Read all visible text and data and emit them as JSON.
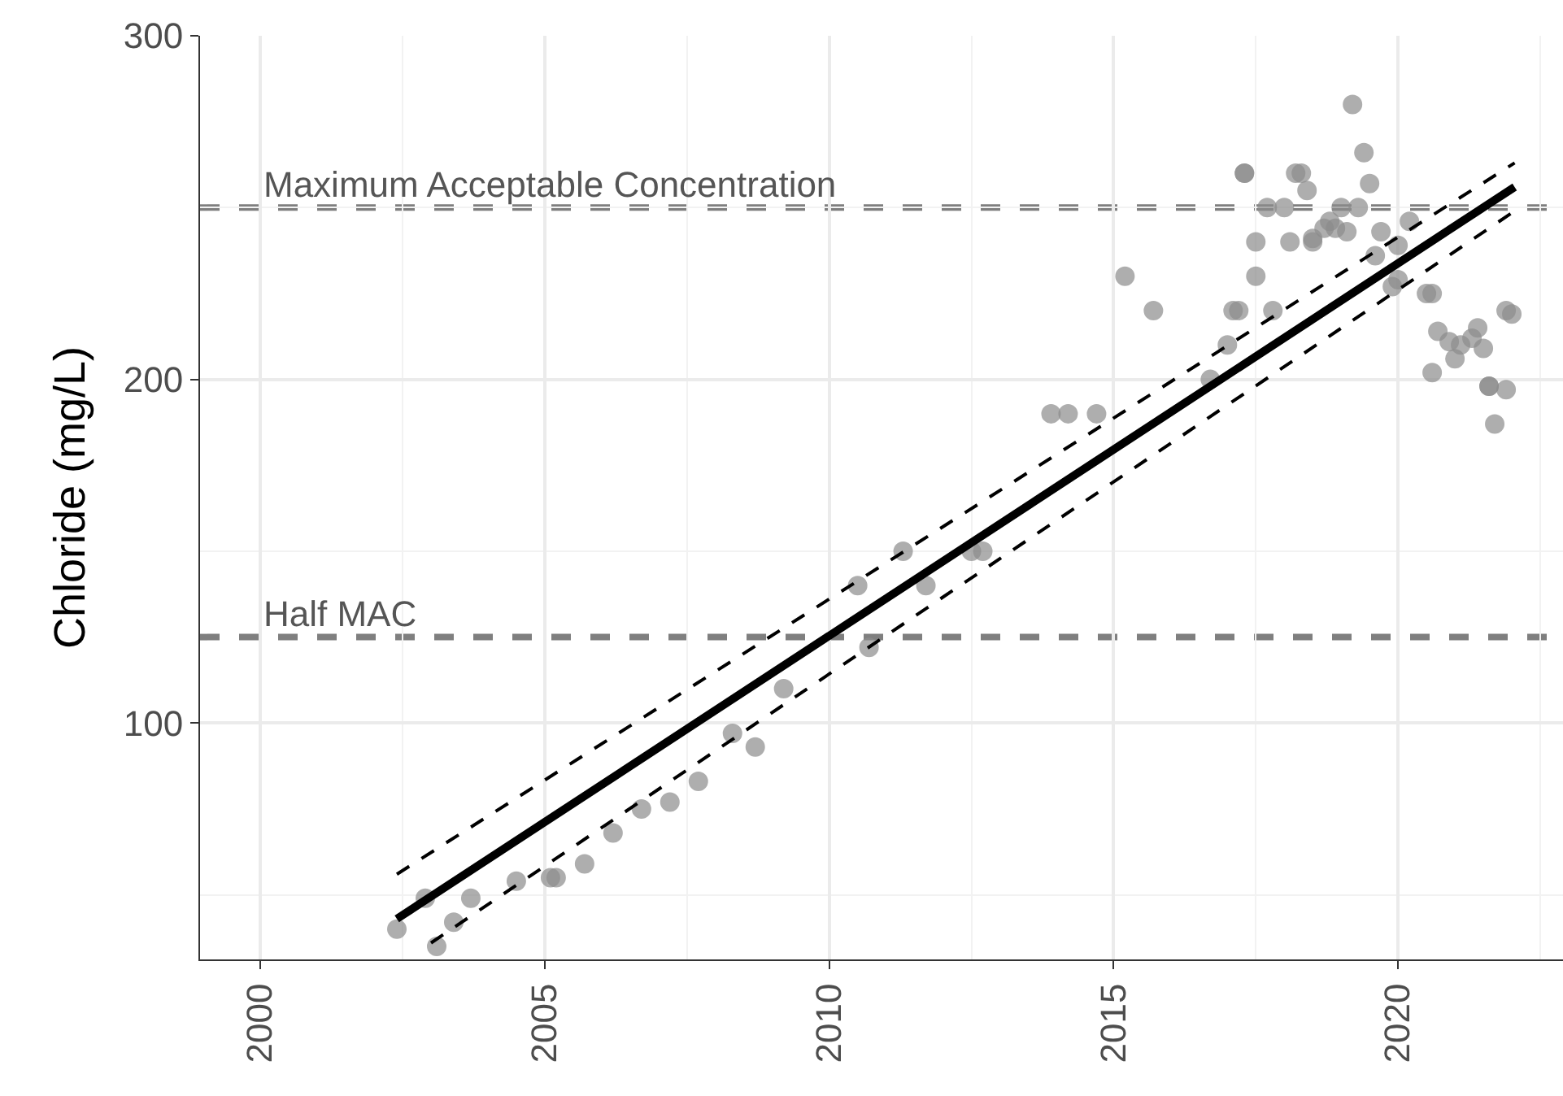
{
  "chart_data": {
    "type": "scatter",
    "ylabel": "Chloride (mg/L)",
    "xlim": [
      1998.94,
      2022.9
    ],
    "xticks": [
      2000,
      2005,
      2010,
      2015,
      2020
    ],
    "ylim": [
      31.2,
      300
    ],
    "yticks": [
      100,
      200,
      300
    ],
    "grid": true,
    "marker": "circle",
    "series": [
      {
        "color": "#8c8c8c",
        "x": [
          2002.4,
          2002.9,
          2003.1,
          2003.4,
          2003.7,
          2004.5,
          2005.1,
          2005.2,
          2005.7,
          2006.2,
          2006.7,
          2007.2,
          2007.7,
          2008.3,
          2008.7,
          2009.2,
          2010.5,
          2010.7,
          2011.3,
          2011.7,
          2012.5,
          2012.7,
          2013.9,
          2014.2,
          2014.7,
          2015.2,
          2015.7,
          2016.7,
          2017.0,
          2017.1,
          2017.2,
          2017.3,
          2017.3,
          2017.5,
          2017.5,
          2017.7,
          2017.8,
          2018.0,
          2018.1,
          2018.2,
          2018.3,
          2018.4,
          2018.5,
          2018.5,
          2018.7,
          2018.8,
          2018.9,
          2019.0,
          2019.1,
          2019.2,
          2019.3,
          2019.4,
          2019.5,
          2019.6,
          2019.7,
          2019.9,
          2020.0,
          2020.0,
          2020.2,
          2020.5,
          2020.6,
          2020.6,
          2020.7,
          2020.9,
          2021.0,
          2021.1,
          2021.3,
          2021.4,
          2021.5,
          2021.6,
          2021.6,
          2021.7,
          2021.9,
          2021.9,
          2022.0
        ],
        "values": [
          40,
          49,
          35,
          42,
          49,
          54,
          55,
          55,
          59,
          68,
          75,
          77,
          83,
          97,
          93,
          110,
          140,
          122,
          150,
          140,
          150,
          150,
          190,
          190,
          190,
          230,
          220,
          200,
          210,
          220,
          220,
          260,
          260,
          230,
          240,
          250,
          220,
          250,
          240,
          260,
          260,
          255,
          240,
          241,
          244,
          246,
          244,
          250,
          243,
          280,
          250,
          266,
          257,
          236,
          243,
          227,
          229,
          239,
          246,
          225,
          225,
          202,
          214,
          211,
          206,
          210,
          212,
          215,
          209,
          198,
          198,
          187,
          197,
          220,
          219
        ]
      },
      {
        "type": "line",
        "color": "#000000",
        "line_style": "solid",
        "marker": "none",
        "x": [
          2002.4,
          2022.05
        ],
        "values": [
          43,
          256
        ]
      },
      {
        "type": "line",
        "color": "#000000",
        "line_style": "dashed",
        "marker": "none",
        "x": [
          2002.4,
          2022.05
        ],
        "values": [
          56,
          263
        ]
      },
      {
        "type": "line",
        "color": "#000000",
        "line_style": "dashed",
        "marker": "none",
        "x": [
          2003.0,
          2022.05
        ],
        "values": [
          36,
          249
        ]
      }
    ],
    "ref_lines": [
      {
        "axis": "y",
        "value": 250,
        "label": "Maximum Acceptable Concentration",
        "color": "#7f7f7f",
        "line_style": "dashed"
      },
      {
        "axis": "y",
        "value": 125,
        "label": "Half MAC",
        "color": "#7f7f7f",
        "line_style": "dashed"
      }
    ]
  }
}
